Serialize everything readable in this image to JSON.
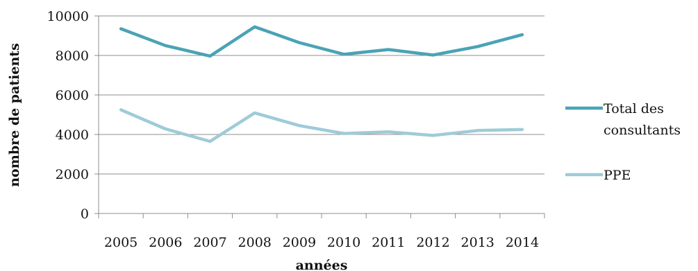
{
  "chart_data": {
    "type": "line",
    "title": "",
    "xlabel": "années",
    "ylabel": "nombre de patients",
    "categories": [
      "2005",
      "2006",
      "2007",
      "2008",
      "2009",
      "2010",
      "2011",
      "2012",
      "2013",
      "2014"
    ],
    "ylim": [
      0,
      10000
    ],
    "yticks": [
      0,
      2000,
      4000,
      6000,
      8000,
      10000
    ],
    "grid": true,
    "legend_position": "right",
    "series": [
      {
        "name": "Total des consultants",
        "legend_lines": [
          "Total des",
          "consultants"
        ],
        "color": "#4aa3b5",
        "values": [
          9350,
          8500,
          7970,
          9450,
          8650,
          8060,
          8300,
          8020,
          8450,
          9050
        ]
      },
      {
        "name": "PPE",
        "legend_lines": [
          "PPE"
        ],
        "color": "#9ecbd8",
        "values": [
          5250,
          4280,
          3650,
          5090,
          4450,
          4050,
          4130,
          3950,
          4200,
          4250
        ]
      }
    ]
  }
}
